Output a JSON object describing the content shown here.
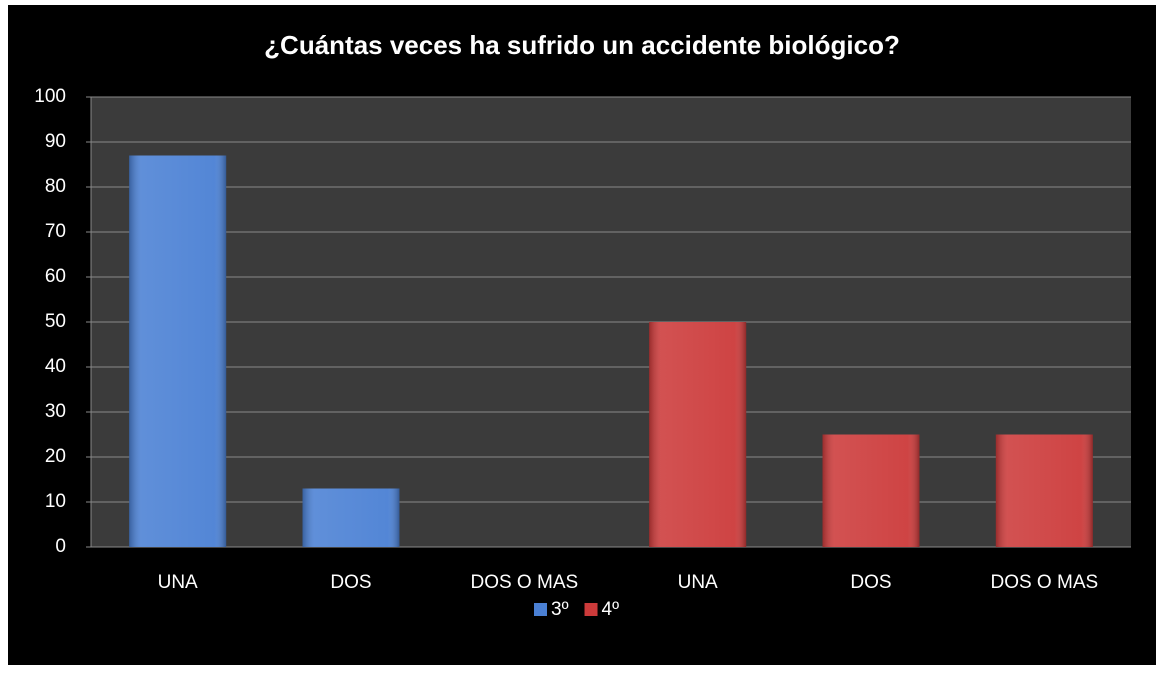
{
  "chart_data": {
    "type": "bar",
    "title": "¿Cuántas veces ha sufrido un accidente biológico?",
    "categories": [
      "UNA",
      "DOS",
      "DOS O MAS",
      "UNA",
      "DOS",
      "DOS O MAS"
    ],
    "series": [
      {
        "name": "3º",
        "color": "#4a80d4",
        "values": [
          87,
          13,
          0,
          null,
          null,
          null
        ]
      },
      {
        "name": "4º",
        "color": "#cc3a3a",
        "values": [
          null,
          null,
          null,
          50,
          25,
          25
        ]
      }
    ],
    "ylim": [
      0,
      100
    ],
    "yticks": [
      0,
      10,
      20,
      30,
      40,
      50,
      60,
      70,
      80,
      90,
      100
    ],
    "grid": true,
    "legend": "bottom"
  }
}
